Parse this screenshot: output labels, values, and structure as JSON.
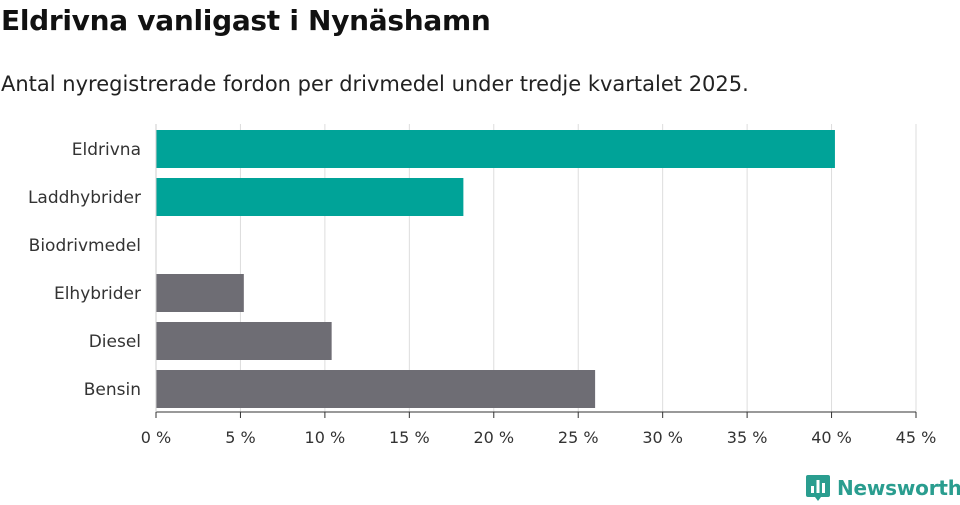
{
  "chart_data": {
    "type": "bar",
    "orientation": "horizontal",
    "title": "Eldrivna vanligast i Nynäshamn",
    "subtitle": "Antal nyregistrerade fordon per drivmedel under tredje kvartalet 2025.",
    "categories": [
      "Eldrivna",
      "Laddhybrider",
      "Biodrivmedel",
      "Elhybrider",
      "Diesel",
      "Bensin"
    ],
    "values": [
      40.2,
      18.2,
      0,
      5.2,
      10.4,
      26.0
    ],
    "groups": [
      "electric",
      "electric",
      "electric",
      "fossil",
      "fossil",
      "fossil"
    ],
    "colors": {
      "electric": "#00a398",
      "fossil": "#6e6d74"
    },
    "xlim": [
      0,
      45
    ],
    "xticks": [
      0,
      5,
      10,
      15,
      20,
      25,
      30,
      35,
      40,
      45
    ],
    "tick_suffix": " %",
    "grid": true
  },
  "brand": {
    "name": "Newsworthy",
    "icon": "bar-chart-logo-icon",
    "color": "#2a9d8f"
  }
}
